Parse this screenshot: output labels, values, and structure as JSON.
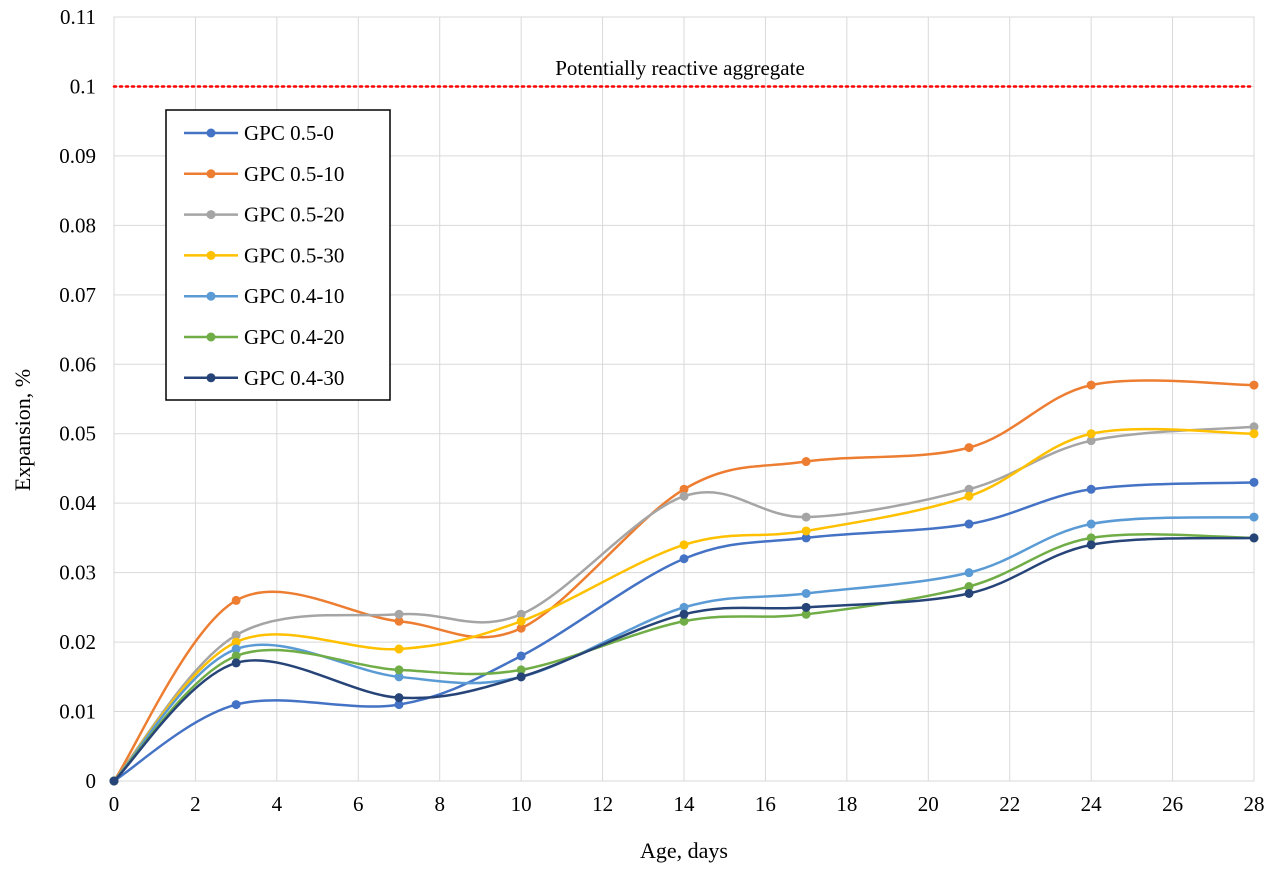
{
  "chart_data": {
    "type": "line",
    "title": "",
    "xlabel": "Age, days",
    "ylabel": "Expansion, %",
    "xlim": [
      0,
      28
    ],
    "ylim": [
      0,
      0.11
    ],
    "x_ticks": [
      "0",
      "2",
      "4",
      "6",
      "8",
      "10",
      "12",
      "14",
      "16",
      "18",
      "20",
      "22",
      "24",
      "26",
      "28"
    ],
    "y_ticks": [
      "0",
      "0.01",
      "0.02",
      "0.03",
      "0.04",
      "0.05",
      "0.06",
      "0.07",
      "0.08",
      "0.09",
      "0.1",
      "0.11"
    ],
    "grid": true,
    "legend_position": "top-left",
    "smoothed": true,
    "reference_line": {
      "label": "Potentially reactive aggregate",
      "y": 0.1,
      "color": "#ff0000",
      "style": "dotted"
    },
    "x": [
      0,
      3,
      7,
      10,
      14,
      17,
      21,
      24,
      28
    ],
    "series": [
      {
        "name": "GPC 0.5-0",
        "color": "#4472c4",
        "values": [
          0,
          0.011,
          0.011,
          0.018,
          0.032,
          0.035,
          0.037,
          0.042,
          0.043
        ]
      },
      {
        "name": "GPC 0.5-10",
        "color": "#ed7d31",
        "values": [
          0,
          0.026,
          0.023,
          0.022,
          0.042,
          0.046,
          0.048,
          0.057,
          0.057
        ]
      },
      {
        "name": "GPC 0.5-20",
        "color": "#a5a5a5",
        "values": [
          0,
          0.021,
          0.024,
          0.024,
          0.041,
          0.038,
          0.042,
          0.049,
          0.051
        ]
      },
      {
        "name": "GPC 0.5-30",
        "color": "#ffc000",
        "values": [
          0,
          0.02,
          0.019,
          0.023,
          0.034,
          0.036,
          0.041,
          0.05,
          0.05
        ]
      },
      {
        "name": "GPC 0.4-10",
        "color": "#5b9bd5",
        "values": [
          0,
          0.019,
          0.015,
          0.015,
          0.025,
          0.027,
          0.03,
          0.037,
          0.038
        ]
      },
      {
        "name": "GPC 0.4-20",
        "color": "#70ad47",
        "values": [
          0,
          0.018,
          0.016,
          0.016,
          0.023,
          0.024,
          0.028,
          0.035,
          0.035
        ]
      },
      {
        "name": "GPC 0.4-30",
        "color": "#264478",
        "values": [
          0,
          0.017,
          0.012,
          0.015,
          0.024,
          0.025,
          0.027,
          0.034,
          0.035
        ]
      }
    ]
  }
}
